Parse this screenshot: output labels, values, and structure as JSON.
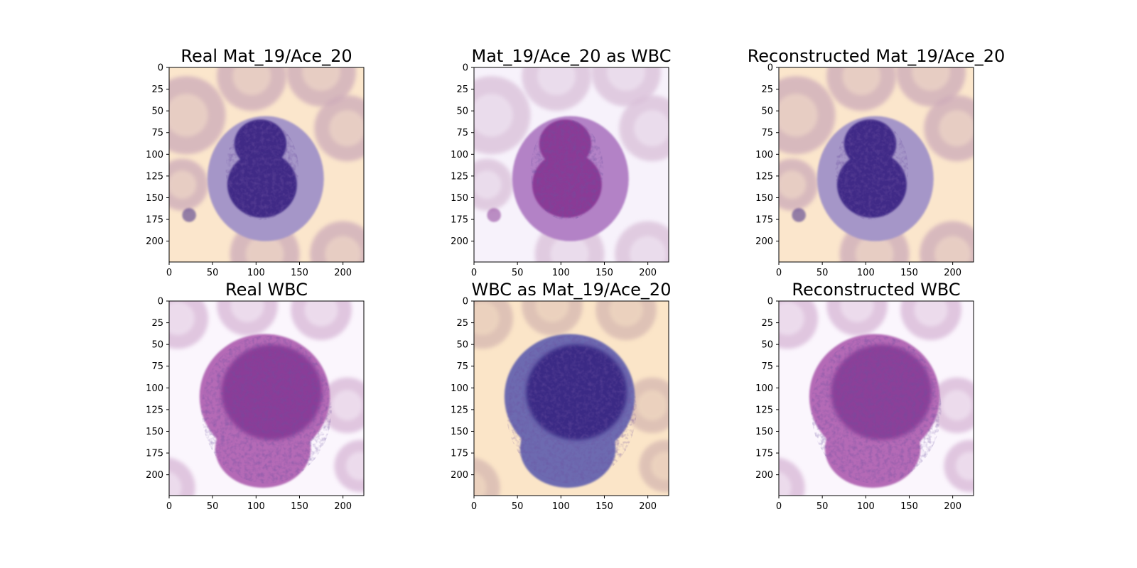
{
  "figure": {
    "panels": [
      {
        "id": "real-a",
        "title": "Real Mat_19/Ace_20",
        "background": "#fbe6cc",
        "cell_fill": "#a596c8",
        "nucleus_fill": "#3f2a86",
        "nucleus_shape": "bilobed",
        "rbc_fill": "#ccaab9"
      },
      {
        "id": "a-as-b",
        "title": "Mat_19/Ace_20 as WBC",
        "background": "#f7f2fb",
        "cell_fill": "#b382c6",
        "nucleus_fill": "#8a3a96",
        "nucleus_shape": "bilobed",
        "rbc_fill": "#d9bfd8"
      },
      {
        "id": "recon-a",
        "title": "Reconstructed Mat_19/Ace_20",
        "background": "#fbe6cc",
        "cell_fill": "#a596c8",
        "nucleus_fill": "#402b87",
        "nucleus_shape": "bilobed",
        "rbc_fill": "#ccaab9"
      },
      {
        "id": "real-b",
        "title": "Real WBC",
        "background": "#fbf6fd",
        "cell_fill": "#b46bb6",
        "nucleus_fill": "#8a3e98",
        "nucleus_shape": "round",
        "rbc_fill": "#d7b6d6"
      },
      {
        "id": "b-as-a",
        "title": "WBC as Mat_19/Ace_20",
        "background": "#fbe5c8",
        "cell_fill": "#6d6bb0",
        "nucleus_fill": "#3b2a85",
        "nucleus_shape": "round",
        "rbc_fill": "#d5b7b1"
      },
      {
        "id": "recon-b",
        "title": "Reconstructed WBC",
        "background": "#fbf6fd",
        "cell_fill": "#b46bb6",
        "nucleus_fill": "#8b3f99",
        "nucleus_shape": "round",
        "rbc_fill": "#d7b6d6"
      }
    ],
    "axis": {
      "y_ticks": [
        0,
        25,
        50,
        75,
        100,
        125,
        150,
        175,
        200
      ],
      "x_ticks": [
        0,
        50,
        100,
        150,
        200
      ],
      "range": [
        0,
        224
      ]
    }
  }
}
